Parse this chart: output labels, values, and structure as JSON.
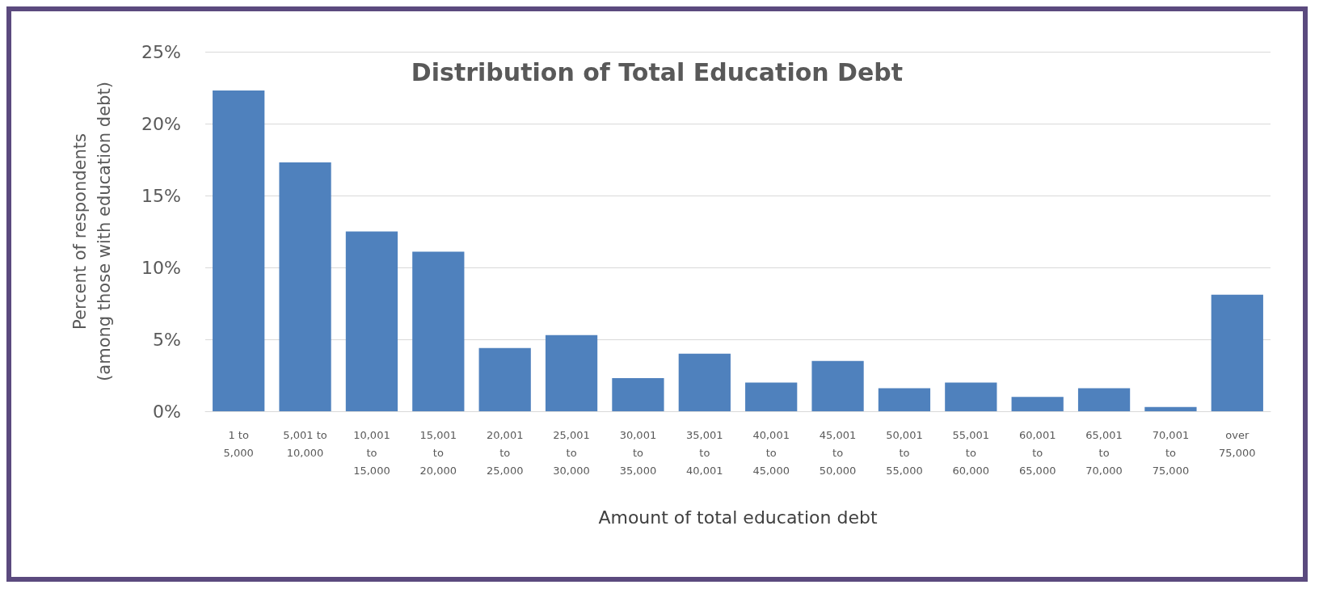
{
  "chart_data": {
    "type": "bar",
    "title": "Distribution of Total Education Debt",
    "xlabel": "Amount of total education debt",
    "ylabel": "Percent of respondents\n(among those with education debt)",
    "categories": [
      "1 to 5,000",
      "5,001 to 10,000",
      "10,001 to 15,000",
      "15,001 to 20,000",
      "20,001 to 25,000",
      "25,001 to 30,000",
      "30,001 to 35,000",
      "35,001 to 40,001",
      "40,001 to 45,000",
      "45,001 to 50,000",
      "50,001 to 55,000",
      "55,001 to 60,000",
      "60,001 to 65,000",
      "65,001 to 70,000",
      "70,001 to 75,000",
      "over 75,000"
    ],
    "values": [
      22.3,
      17.3,
      12.5,
      11.1,
      4.4,
      5.3,
      2.3,
      4.0,
      2.0,
      3.5,
      1.6,
      2.0,
      1.0,
      1.6,
      0.3,
      8.1
    ],
    "color": "#4f81bd",
    "ylim": [
      0,
      25
    ],
    "yticks": [
      {
        "value": 0,
        "label": "0%"
      },
      {
        "value": 5,
        "label": "5%"
      },
      {
        "value": 10,
        "label": "10%"
      },
      {
        "value": 15,
        "label": "15%"
      },
      {
        "value": 20,
        "label": "20%"
      },
      {
        "value": 25,
        "label": "25%"
      }
    ],
    "grid": "y"
  }
}
